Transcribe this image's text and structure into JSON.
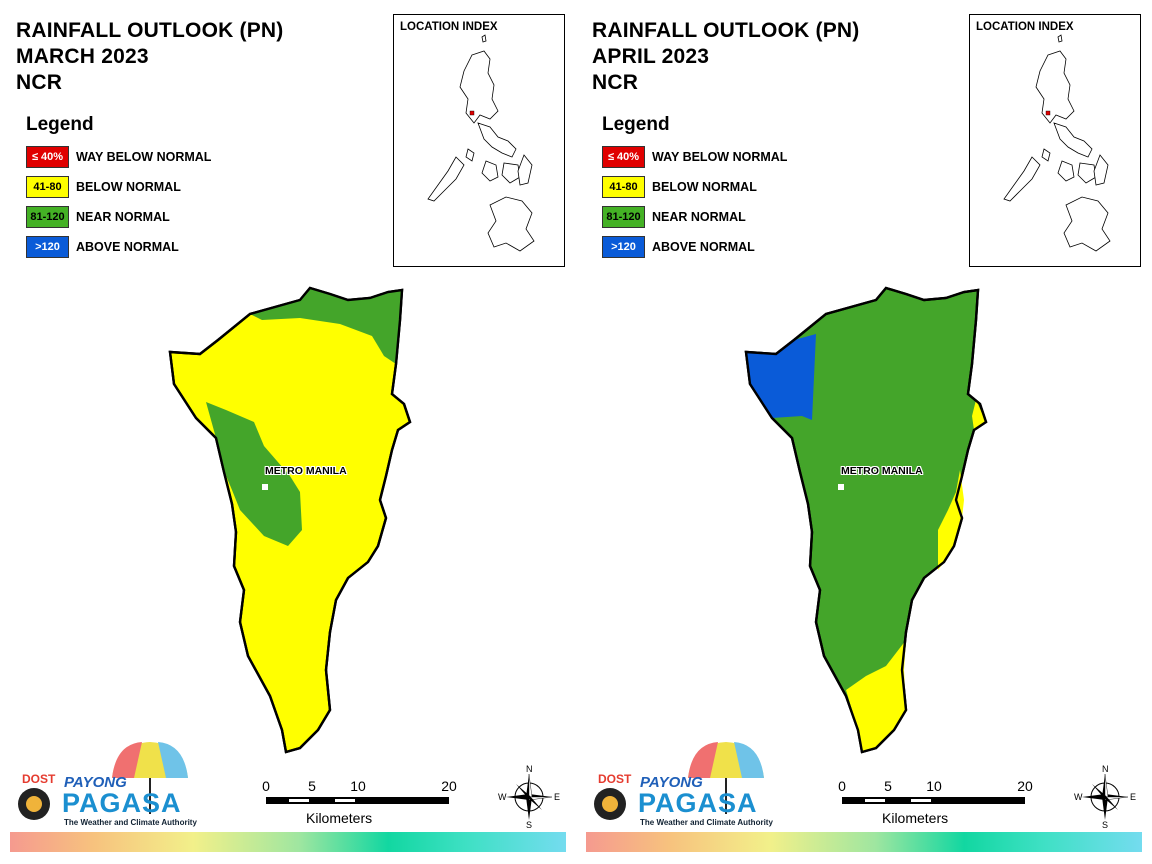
{
  "panels": [
    {
      "title_line1": "RAINFALL OUTLOOK (PN)",
      "title_line2": "MARCH 2023",
      "title_line3": "NCR",
      "map_fill": "yellow"
    },
    {
      "title_line1": "RAINFALL OUTLOOK (PN)",
      "title_line2": "APRIL 2023",
      "title_line3": "NCR",
      "map_fill": "green"
    }
  ],
  "legend": {
    "title": "Legend",
    "items": [
      {
        "range": "≤ 40%",
        "label": "WAY BELOW NORMAL",
        "color": "#e00000",
        "text_color": "#ffffff"
      },
      {
        "range": "41-80",
        "label": "BELOW NORMAL",
        "color": "#ffff00",
        "text_color": "#000000"
      },
      {
        "range": "81-120",
        "label": "NEAR NORMAL",
        "color": "#44b125",
        "text_color": "#000000"
      },
      {
        "range": ">120",
        "label": "ABOVE NORMAL",
        "color": "#0a5bd8",
        "text_color": "#ffffff"
      }
    ]
  },
  "location_index": {
    "title": "LOCATION INDEX"
  },
  "place_label": "METRO MANILA",
  "colors": {
    "yellow": "#ffff00",
    "green": "#44a52a",
    "blue": "#0a5bd8",
    "outline": "#000000"
  },
  "scale": {
    "ticks": [
      "0",
      "5",
      "10",
      "20"
    ],
    "unit": "Kilometers"
  },
  "compass": {
    "n": "N",
    "s": "S",
    "e": "E",
    "w": "W"
  },
  "logo": {
    "dost": "DOST",
    "payong": "PAYONG",
    "pagasa": "PAGASA",
    "tagline": "The Weather and Climate Authority"
  }
}
